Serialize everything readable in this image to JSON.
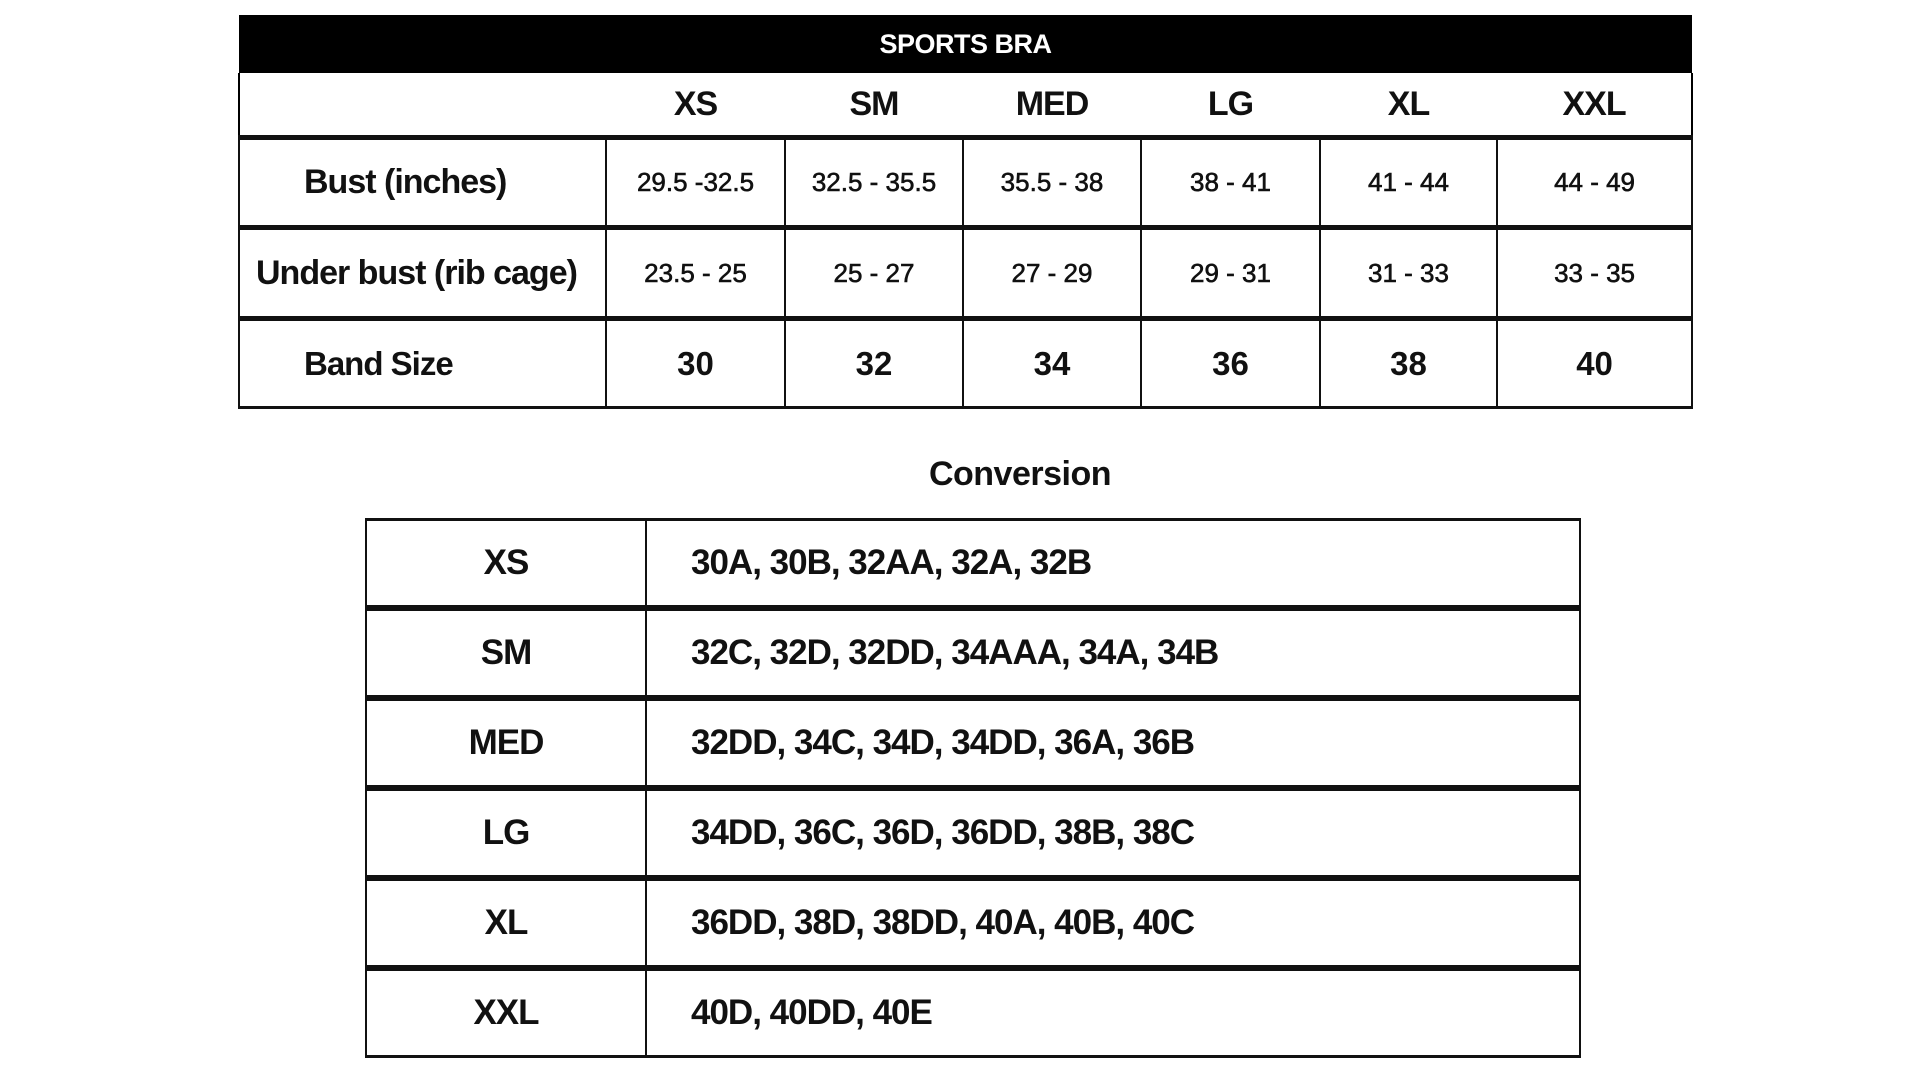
{
  "size_chart": {
    "title": "SPORTS BRA",
    "sizes": [
      "XS",
      "SM",
      "MED",
      "LG",
      "XL",
      "XXL"
    ],
    "rows": [
      {
        "label": "Bust (inches)",
        "values": [
          "29.5 -32.5",
          "32.5 - 35.5",
          "35.5 - 38",
          "38 - 41",
          "41 - 44",
          "44 - 49"
        ]
      },
      {
        "label": "Under bust (rib cage)",
        "values": [
          "23.5 - 25",
          "25 - 27",
          "27 - 29",
          "29 - 31",
          "31 - 33",
          "33 - 35"
        ]
      },
      {
        "label": "Band Size",
        "values": [
          "30",
          "32",
          "34",
          "36",
          "38",
          "40"
        ]
      }
    ]
  },
  "conversion": {
    "title": "Conversion",
    "rows": [
      {
        "size": "XS",
        "values": "30A, 30B, 32AA, 32A, 32B"
      },
      {
        "size": "SM",
        "values": "32C, 32D, 32DD, 34AAA, 34A, 34B"
      },
      {
        "size": "MED",
        "values": "32DD, 34C, 34D, 34DD, 36A, 36B"
      },
      {
        "size": "LG",
        "values": "34DD, 36C, 36D, 36DD, 38B, 38C"
      },
      {
        "size": "XL",
        "values": "36DD, 38D, 38DD, 40A, 40B, 40C"
      },
      {
        "size": "XXL",
        "values": "40D, 40DD, 40E"
      }
    ]
  }
}
